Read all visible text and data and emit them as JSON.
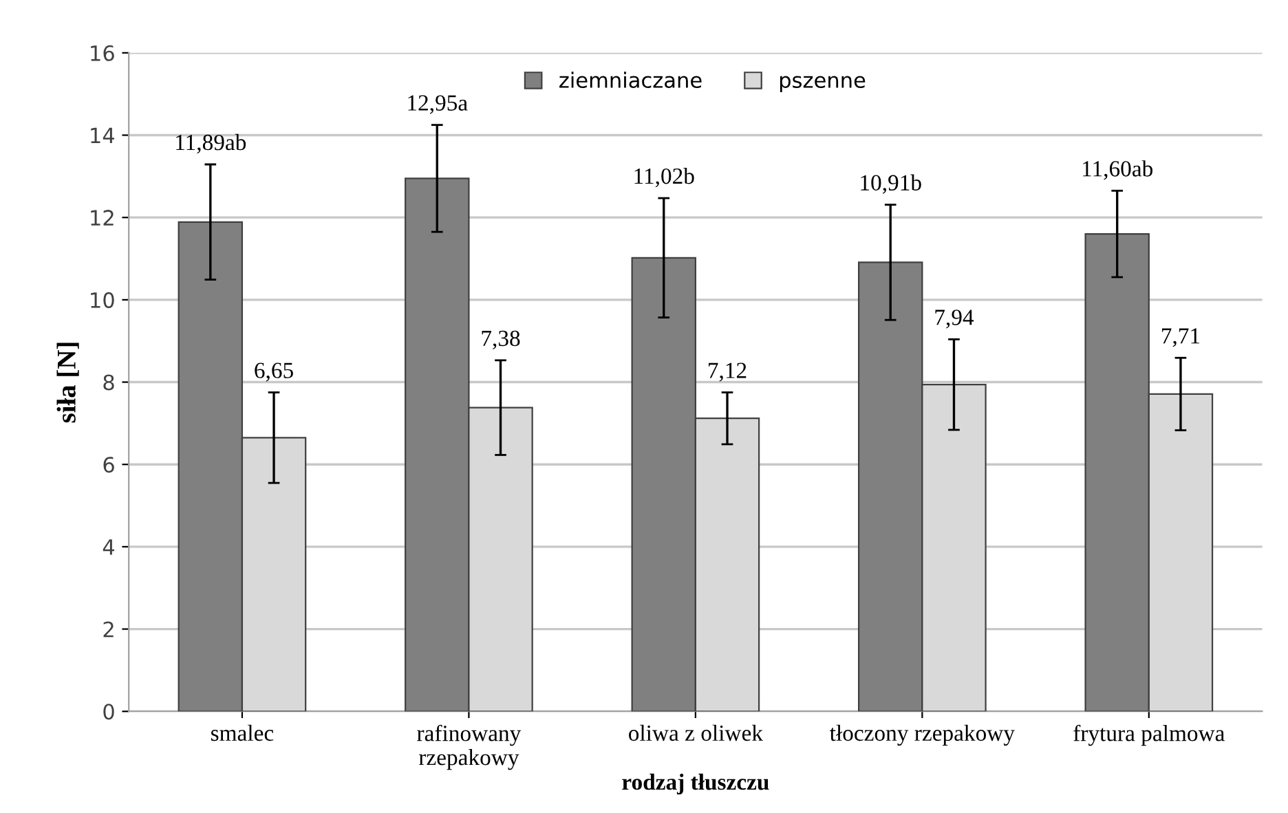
{
  "chart_data": {
    "type": "bar",
    "ylabel": "siła [N]",
    "xlabel": "rodzaj tłuszczu",
    "categories": [
      "smalec",
      "rafinowany\nrzepakowy",
      "oliwa z oliwek",
      "tłoczony rzepakowy",
      "frytura palmowa"
    ],
    "series": [
      {
        "name": "ziemniaczane",
        "color": "#808080",
        "values": [
          11.89,
          12.95,
          11.02,
          10.91,
          11.6
        ],
        "errors": [
          1.4,
          1.3,
          1.45,
          1.4,
          1.05
        ],
        "value_labels": [
          "11,89ab",
          "12,95a",
          "11,02b",
          "10,91b",
          "11,60ab"
        ]
      },
      {
        "name": "pszenne",
        "color": "#d9d9d9",
        "values": [
          6.65,
          7.38,
          7.12,
          7.94,
          7.71
        ],
        "errors": [
          1.1,
          1.15,
          0.63,
          1.1,
          0.88
        ],
        "value_labels": [
          "6,65",
          "7,38",
          "7,12",
          "7,94",
          "7,71"
        ]
      }
    ],
    "ylim": [
      0,
      16
    ],
    "yticks": [
      0,
      2,
      4,
      6,
      8,
      10,
      12,
      14,
      16
    ],
    "grid": "y",
    "legend": "top"
  }
}
